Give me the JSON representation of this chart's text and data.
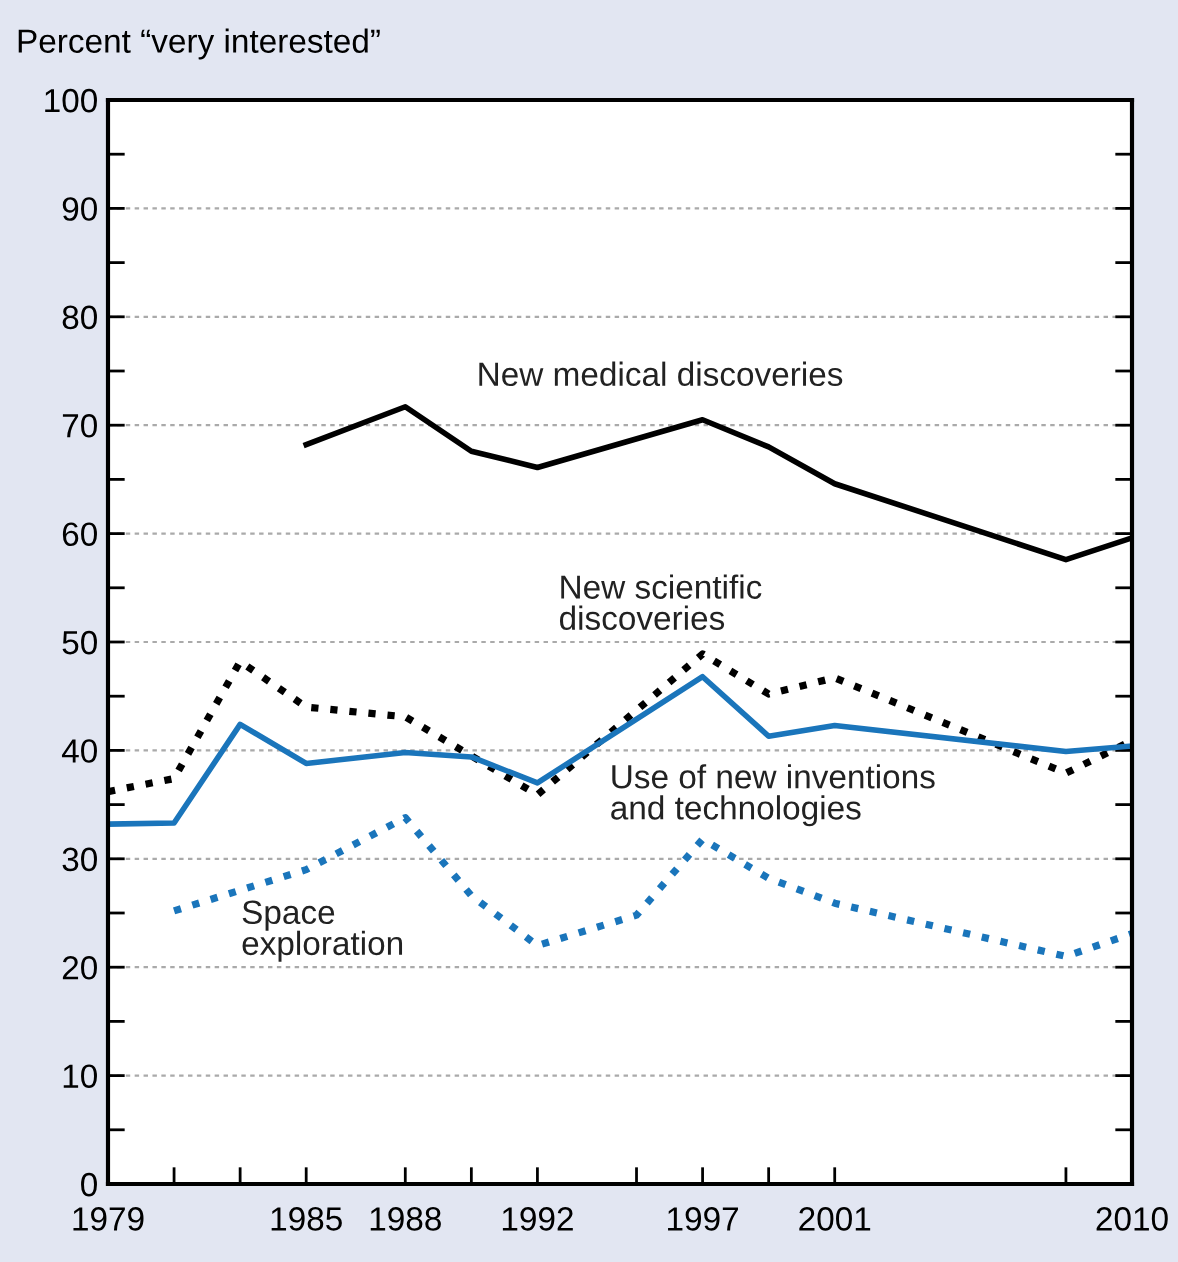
{
  "chart_data": {
    "type": "line",
    "ylabel": "Percent “very interested”",
    "xlim": [
      1979,
      2010
    ],
    "ylim": [
      0,
      100
    ],
    "xticks": [
      1979,
      {
        "value": 1981,
        "label": null
      },
      {
        "value": 1983,
        "label": null
      },
      1985,
      1988,
      {
        "value": 1990,
        "label": null
      },
      1992,
      {
        "value": 1995,
        "label": null
      },
      1997,
      {
        "value": 1999,
        "label": null
      },
      2001,
      {
        "value": 2008,
        "label": null
      },
      2010
    ],
    "yticks": [
      0,
      {
        "value": 5,
        "label": null
      },
      10,
      {
        "value": 15,
        "label": null
      },
      20,
      {
        "value": 25,
        "label": null
      },
      30,
      {
        "value": 35,
        "label": null
      },
      40,
      {
        "value": 45,
        "label": null
      },
      50,
      {
        "value": 55,
        "label": null
      },
      60,
      {
        "value": 65,
        "label": null
      },
      70,
      {
        "value": 75,
        "label": null
      },
      80,
      {
        "value": 85,
        "label": null
      },
      90,
      {
        "value": 95,
        "label": null
      },
      100
    ],
    "grid": "y",
    "legend": false,
    "marker": "none",
    "series": [
      {
        "name": "New medical discoveries",
        "color": "#000000",
        "line_style": "solid",
        "x": [
          1985,
          1988,
          1990,
          1992,
          1997,
          1999,
          2001,
          2008,
          2010
        ],
        "values": [
          68.2,
          71.7,
          67.6,
          66.1,
          70.5,
          68.0,
          64.6,
          57.6,
          59.6
        ]
      },
      {
        "name": "New scientific discoveries",
        "color": "#000000",
        "line_style": "dotted",
        "x": [
          1979,
          1981,
          1983,
          1985,
          1988,
          1990,
          1992,
          1997,
          1999,
          2001,
          2008,
          2010
        ],
        "values": [
          36.2,
          37.4,
          48.2,
          44.0,
          43.1,
          39.5,
          35.9,
          48.9,
          45.2,
          46.7,
          37.9,
          40.9
        ]
      },
      {
        "name": "Use of new inventions and technologies",
        "color": "#1a75bb",
        "line_style": "solid",
        "x": [
          1979,
          1981,
          1983,
          1985,
          1988,
          1990,
          1992,
          1997,
          1999,
          2001,
          2008,
          2010
        ],
        "values": [
          33.2,
          33.3,
          42.4,
          38.8,
          39.8,
          39.4,
          37.0,
          46.8,
          41.3,
          42.3,
          39.9,
          40.4
        ]
      },
      {
        "name": "Space exploration",
        "color": "#1a75bb",
        "line_style": "dotted",
        "x": [
          1981,
          1985,
          1988,
          1990,
          1992,
          1995,
          1997,
          1999,
          2001,
          2008,
          2010
        ],
        "values": [
          25.2,
          29.0,
          33.8,
          26.6,
          22.0,
          24.8,
          31.8,
          28.2,
          25.9,
          21.0,
          23.1
        ]
      }
    ]
  }
}
